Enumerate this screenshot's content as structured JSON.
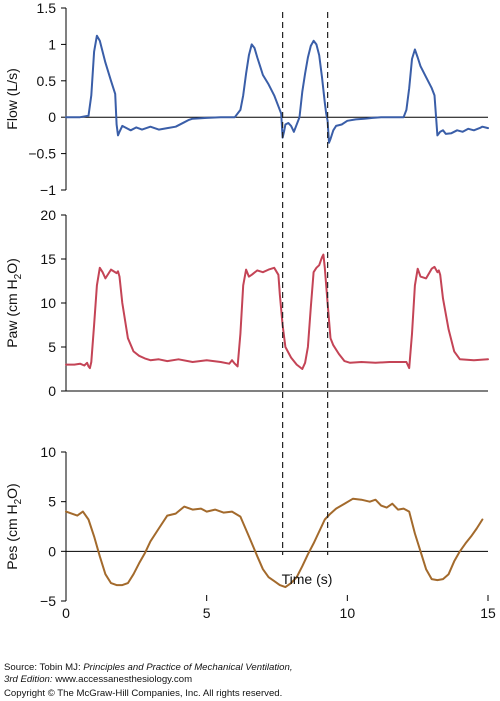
{
  "chart_data": {
    "type": "line",
    "xlabel": "Time (s)",
    "xlim": [
      0,
      15
    ],
    "xticks": [
      0,
      5,
      10,
      15
    ],
    "markers": [
      7.7,
      9.3
    ],
    "colors": {
      "flow": "#3a5ea8",
      "paw": "#c44456",
      "pes": "#a36a2c",
      "axis": "#000000"
    },
    "panels": [
      {
        "name": "flow",
        "ylabel_main": "Flow (L/s)",
        "ylabel_sub": "",
        "ylabel_post": "",
        "ylim": [
          -1,
          1.5
        ],
        "yticks": [
          1.5,
          1,
          0.5,
          0,
          -0.5,
          -1
        ],
        "ytick_labels": [
          "1.5",
          "1",
          "0.5",
          "0",
          "−0.5",
          "−1"
        ],
        "zero_line": true,
        "x": [
          0,
          0.5,
          0.8,
          0.9,
          1.0,
          1.1,
          1.2,
          1.4,
          1.6,
          1.75,
          1.8,
          1.85,
          1.9,
          2.0,
          2.1,
          2.3,
          2.5,
          2.7,
          3.0,
          3.3,
          3.6,
          3.9,
          4.2,
          4.35,
          4.5,
          5.0,
          5.5,
          6.0,
          6.2,
          6.3,
          6.4,
          6.5,
          6.6,
          6.7,
          6.8,
          6.9,
          7.0,
          7.2,
          7.4,
          7.55,
          7.65,
          7.7,
          7.75,
          7.8,
          7.9,
          8.0,
          8.1,
          8.3,
          8.4,
          8.5,
          8.6,
          8.7,
          8.8,
          8.9,
          9.0,
          9.1,
          9.2,
          9.25,
          9.3,
          9.35,
          9.4,
          9.5,
          9.6,
          9.8,
          10.0,
          10.3,
          10.6,
          10.9,
          11.2,
          11.5,
          11.8,
          12.0,
          12.1,
          12.2,
          12.3,
          12.4,
          12.5,
          12.6,
          12.8,
          13.0,
          13.1,
          13.2,
          13.3,
          13.4,
          13.5,
          13.7,
          13.9,
          14.1,
          14.3,
          14.5,
          14.7,
          14.8,
          15.0
        ],
        "y": [
          0,
          0,
          0.02,
          0.3,
          0.9,
          1.12,
          1.05,
          0.75,
          0.5,
          0.32,
          -0.1,
          -0.25,
          -0.2,
          -0.12,
          -0.14,
          -0.18,
          -0.14,
          -0.17,
          -0.13,
          -0.17,
          -0.15,
          -0.13,
          -0.07,
          -0.04,
          -0.02,
          -0.01,
          0,
          0,
          0.1,
          0.3,
          0.6,
          0.85,
          1.0,
          0.95,
          0.82,
          0.7,
          0.58,
          0.45,
          0.3,
          0.15,
          0.05,
          -0.28,
          -0.2,
          -0.1,
          -0.08,
          -0.12,
          -0.2,
          0.0,
          0.35,
          0.6,
          0.82,
          0.98,
          1.05,
          1.0,
          0.85,
          0.55,
          0.2,
          0.05,
          -0.05,
          -0.35,
          -0.3,
          -0.18,
          -0.12,
          -0.1,
          -0.05,
          -0.03,
          -0.02,
          -0.01,
          0,
          0,
          0,
          0,
          0.1,
          0.4,
          0.8,
          0.93,
          0.82,
          0.7,
          0.55,
          0.4,
          0.3,
          -0.25,
          -0.2,
          -0.18,
          -0.23,
          -0.22,
          -0.18,
          -0.2,
          -0.16,
          -0.18,
          -0.15,
          -0.13,
          -0.15
        ]
      },
      {
        "name": "paw",
        "ylabel_main": "Paw (cm H",
        "ylabel_sub": "2",
        "ylabel_post": "O)",
        "ylim": [
          0,
          20
        ],
        "yticks": [
          20,
          15,
          10,
          5,
          0
        ],
        "ytick_labels": [
          "20",
          "15",
          "10",
          "5",
          "0"
        ],
        "zero_line": false,
        "x": [
          0,
          0.3,
          0.5,
          0.65,
          0.75,
          0.8,
          0.85,
          0.9,
          1.0,
          1.1,
          1.2,
          1.3,
          1.4,
          1.6,
          1.8,
          1.85,
          1.9,
          2.0,
          2.2,
          2.4,
          2.6,
          2.8,
          3.0,
          3.3,
          3.6,
          4.0,
          4.5,
          5.0,
          5.5,
          5.8,
          5.9,
          6.0,
          6.1,
          6.2,
          6.3,
          6.4,
          6.5,
          6.6,
          6.8,
          7.0,
          7.2,
          7.4,
          7.55,
          7.6,
          7.7,
          7.8,
          8.0,
          8.2,
          8.4,
          8.5,
          8.6,
          8.7,
          8.8,
          8.9,
          9.0,
          9.1,
          9.15,
          9.2,
          9.3,
          9.4,
          9.5,
          9.7,
          9.9,
          10.1,
          10.5,
          11.0,
          11.5,
          12.0,
          12.1,
          12.2,
          12.3,
          12.4,
          12.5,
          12.6,
          12.8,
          13.0,
          13.1,
          13.2,
          13.25,
          13.3,
          13.4,
          13.6,
          13.8,
          14.0,
          14.5,
          15.0
        ],
        "y": [
          3.0,
          3.0,
          3.1,
          2.9,
          3.2,
          2.8,
          2.6,
          3.3,
          7.5,
          12.0,
          14.0,
          13.5,
          12.8,
          13.8,
          13.4,
          13.6,
          13.0,
          10.0,
          6.0,
          4.5,
          4.0,
          3.7,
          3.5,
          3.6,
          3.4,
          3.6,
          3.3,
          3.5,
          3.3,
          3.1,
          3.5,
          3.1,
          2.8,
          6.5,
          12.0,
          13.8,
          13.0,
          13.2,
          13.7,
          13.5,
          13.8,
          14.0,
          13.2,
          11.0,
          7.5,
          5.0,
          3.8,
          3.0,
          2.5,
          3.2,
          5.0,
          9.5,
          13.5,
          14.0,
          14.3,
          15.2,
          15.5,
          14.0,
          10.0,
          6.0,
          5.2,
          4.2,
          3.4,
          3.2,
          3.3,
          3.2,
          3.3,
          3.3,
          3.3,
          2.6,
          6.5,
          12.0,
          13.9,
          13.0,
          12.8,
          13.9,
          14.1,
          13.5,
          13.7,
          13.2,
          10.5,
          7.0,
          4.5,
          3.6,
          3.5,
          3.6
        ]
      },
      {
        "name": "pes",
        "ylabel_main": "Pes (cm H",
        "ylabel_sub": "2",
        "ylabel_post": "O)",
        "ylim": [
          -5,
          10
        ],
        "yticks": [
          10,
          5,
          0,
          -5
        ],
        "ytick_labels": [
          "10",
          "5",
          "0",
          "−5"
        ],
        "zero_line": true,
        "x": [
          0,
          0.2,
          0.4,
          0.6,
          0.8,
          1.0,
          1.2,
          1.4,
          1.6,
          1.8,
          2.0,
          2.2,
          2.4,
          2.6,
          2.8,
          3.0,
          3.3,
          3.6,
          3.9,
          4.2,
          4.5,
          4.8,
          5.0,
          5.3,
          5.6,
          5.9,
          6.2,
          6.5,
          6.8,
          7.0,
          7.2,
          7.4,
          7.6,
          7.8,
          8.0,
          8.2,
          8.4,
          8.6,
          8.8,
          9.0,
          9.2,
          9.4,
          9.6,
          9.9,
          10.2,
          10.5,
          10.8,
          11.0,
          11.2,
          11.4,
          11.6,
          11.8,
          12.0,
          12.2,
          12.4,
          12.6,
          12.8,
          13.0,
          13.2,
          13.4,
          13.6,
          13.8,
          14.0,
          14.2,
          14.4,
          14.6,
          14.8
        ],
        "y": [
          4.0,
          3.8,
          3.6,
          4.0,
          3.2,
          1.5,
          -0.5,
          -2.3,
          -3.2,
          -3.4,
          -3.4,
          -3.2,
          -2.3,
          -1.2,
          -0.2,
          1.0,
          2.3,
          3.6,
          3.8,
          4.5,
          4.2,
          4.3,
          4.0,
          4.2,
          3.9,
          4.0,
          3.5,
          1.5,
          -0.5,
          -1.8,
          -2.6,
          -3.0,
          -3.4,
          -3.6,
          -3.2,
          -2.6,
          -1.5,
          -0.3,
          0.8,
          2.0,
          3.2,
          3.8,
          4.3,
          4.8,
          5.3,
          5.2,
          5.0,
          5.2,
          4.6,
          4.4,
          4.8,
          4.2,
          4.3,
          4.0,
          1.8,
          0.0,
          -1.8,
          -2.8,
          -2.9,
          -2.8,
          -2.3,
          -1.0,
          0.0,
          0.8,
          1.5,
          2.3,
          3.2
        ]
      }
    ]
  },
  "credit": {
    "line1_prefix": "Source: Tobin MJ: ",
    "line1_title": "Principles and Practice of Mechanical Ventilation,",
    "line2_edition": "3rd Edition:",
    "line2_url": " www.accessanesthesiology.com",
    "line3": "Copyright © The McGraw-Hill Companies, Inc. All rights reserved."
  }
}
